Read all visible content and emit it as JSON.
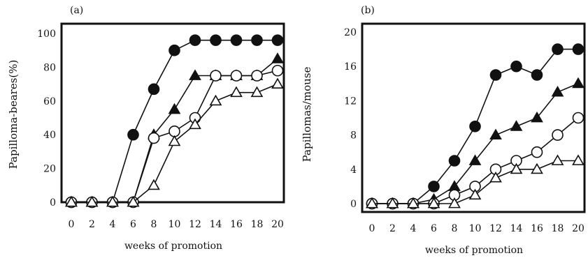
{
  "chart_data": [
    {
      "panel_label": "(a)",
      "type": "line",
      "xlabel": "weeks of promotion",
      "ylabel": "Papilloma-beares(%)",
      "xlim": [
        0,
        20
      ],
      "ylim": [
        0,
        100
      ],
      "xticks": [
        0,
        2,
        4,
        6,
        8,
        10,
        12,
        14,
        16,
        18,
        20
      ],
      "yticks": [
        0,
        20,
        40,
        60,
        80,
        100
      ],
      "grid": false,
      "series": [
        {
          "marker": "filled-circle",
          "x": [
            0,
            2,
            4,
            6,
            8,
            10,
            12,
            14,
            16,
            18,
            20
          ],
          "y": [
            0,
            0,
            0,
            40,
            67,
            90,
            96,
            96,
            96,
            96,
            96
          ]
        },
        {
          "marker": "filled-triangle",
          "x": [
            0,
            2,
            4,
            6,
            8,
            10,
            12,
            14,
            16,
            18,
            20
          ],
          "y": [
            0,
            0,
            0,
            0,
            40,
            55,
            75,
            75,
            75,
            75,
            85
          ]
        },
        {
          "marker": "open-circle",
          "x": [
            0,
            2,
            4,
            6,
            8,
            10,
            12,
            14,
            16,
            18,
            20
          ],
          "y": [
            0,
            0,
            0,
            0,
            38,
            42,
            50,
            75,
            75,
            75,
            78
          ]
        },
        {
          "marker": "open-triangle",
          "x": [
            0,
            2,
            4,
            6,
            8,
            10,
            12,
            14,
            16,
            18,
            20
          ],
          "y": [
            0,
            0,
            0,
            0,
            10,
            36,
            46,
            60,
            65,
            65,
            70
          ]
        }
      ]
    },
    {
      "panel_label": "(b)",
      "type": "line",
      "xlabel": "weeks of promotion",
      "ylabel": "Papillomas/mouse",
      "xlim": [
        0,
        20
      ],
      "ylim": [
        0,
        20
      ],
      "xticks": [
        0,
        2,
        4,
        6,
        8,
        10,
        12,
        14,
        16,
        18,
        20
      ],
      "yticks": [
        0,
        4,
        8,
        12,
        16,
        20
      ],
      "grid": false,
      "series": [
        {
          "marker": "filled-circle",
          "x": [
            0,
            2,
            4,
            6,
            8,
            10,
            12,
            14,
            16,
            18,
            20
          ],
          "y": [
            0,
            0,
            0,
            2,
            5,
            9,
            15,
            16,
            15,
            18,
            18
          ]
        },
        {
          "marker": "filled-triangle",
          "x": [
            0,
            2,
            4,
            6,
            8,
            10,
            12,
            14,
            16,
            18,
            20
          ],
          "y": [
            0,
            0,
            0,
            0.5,
            2,
            5,
            8,
            9,
            10,
            13,
            14
          ]
        },
        {
          "marker": "open-circle",
          "x": [
            0,
            2,
            4,
            6,
            8,
            10,
            12,
            14,
            16,
            18,
            20
          ],
          "y": [
            0,
            0,
            0,
            0,
            1,
            2,
            4,
            5,
            6,
            8,
            10
          ]
        },
        {
          "marker": "open-triangle",
          "x": [
            0,
            2,
            4,
            6,
            8,
            10,
            12,
            14,
            16,
            18,
            20
          ],
          "y": [
            0,
            0,
            0,
            0,
            0,
            1,
            3,
            4,
            4,
            5,
            5
          ]
        }
      ]
    }
  ]
}
